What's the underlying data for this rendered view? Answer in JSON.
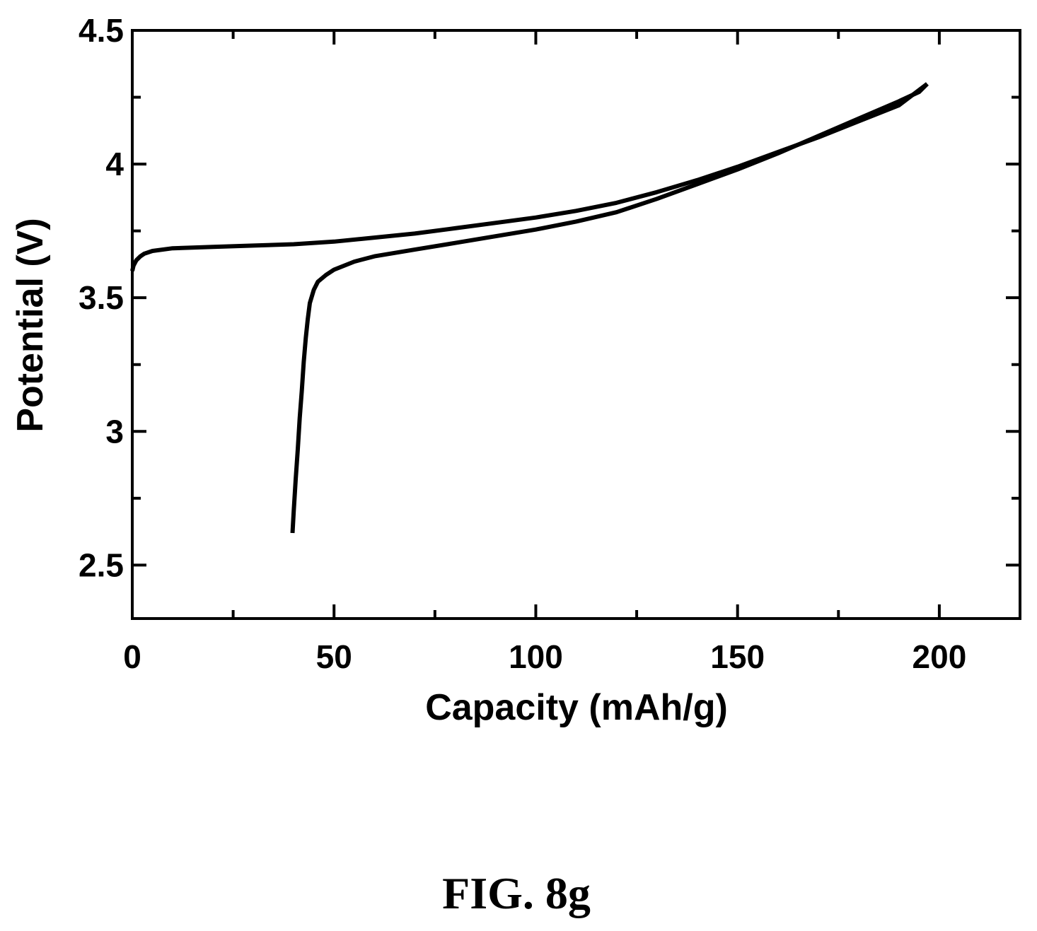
{
  "figure": {
    "caption": "FIG. 8g"
  },
  "chart_data": {
    "type": "line",
    "title": "",
    "xlabel": "Capacity (mAh/g)",
    "ylabel": "Potential (V)",
    "xlim": [
      0,
      220
    ],
    "ylim": [
      2.3,
      4.5
    ],
    "x_ticks": [
      0,
      50,
      100,
      150,
      200
    ],
    "x_tick_labels": [
      "0",
      "50",
      "100",
      "150",
      "200"
    ],
    "x_minor_ticks": [
      25,
      75,
      125,
      175
    ],
    "y_ticks": [
      2.5,
      3,
      3.5,
      4,
      4.5
    ],
    "y_tick_labels": [
      "2.5",
      "3",
      "3.5",
      "4",
      "4.5"
    ],
    "y_minor_ticks": [
      2.75,
      3.25,
      3.75,
      4.25
    ],
    "grid": false,
    "color": "#000000",
    "series": [
      {
        "x": [
          0,
          0.3,
          1,
          2,
          3,
          5,
          10,
          20,
          30,
          40,
          50,
          60,
          70,
          80,
          90,
          100,
          110,
          120,
          130,
          140,
          150,
          160,
          170,
          180,
          190,
          197
        ],
        "y": [
          3.6,
          3.62,
          3.64,
          3.655,
          3.665,
          3.675,
          3.685,
          3.69,
          3.695,
          3.7,
          3.71,
          3.725,
          3.74,
          3.76,
          3.78,
          3.8,
          3.825,
          3.855,
          3.895,
          3.94,
          3.99,
          4.045,
          4.1,
          4.16,
          4.22,
          4.3
        ]
      },
      {
        "x": [
          197,
          195,
          190,
          180,
          170,
          160,
          150,
          140,
          130,
          120,
          110,
          100,
          90,
          80,
          70,
          60,
          55,
          50,
          48,
          46,
          45,
          44,
          43.5,
          43,
          42.5,
          42,
          41.5,
          41,
          40.5,
          40,
          39.7
        ],
        "y": [
          4.3,
          4.27,
          4.235,
          4.17,
          4.105,
          4.04,
          3.98,
          3.925,
          3.87,
          3.82,
          3.785,
          3.755,
          3.73,
          3.705,
          3.68,
          3.655,
          3.635,
          3.605,
          3.585,
          3.56,
          3.53,
          3.48,
          3.42,
          3.35,
          3.26,
          3.15,
          3.05,
          2.93,
          2.82,
          2.7,
          2.62
        ]
      }
    ]
  }
}
